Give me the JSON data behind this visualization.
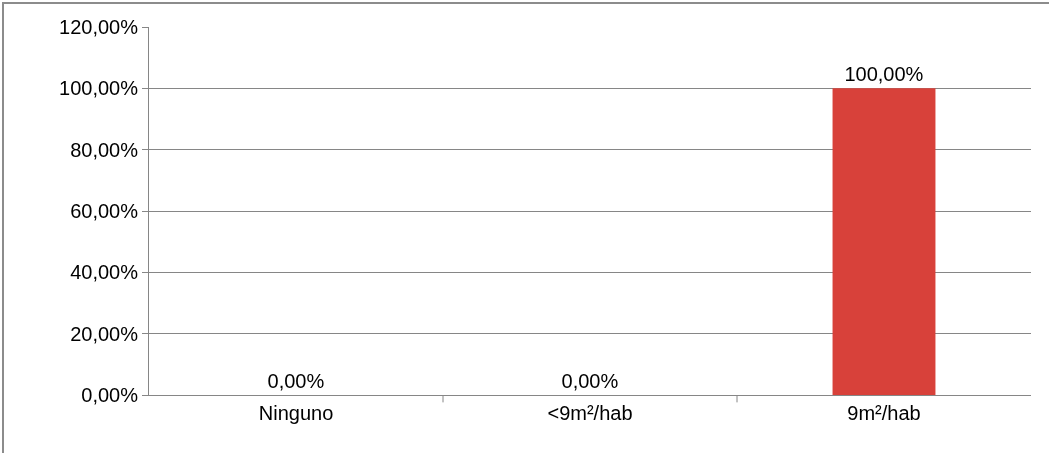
{
  "chart_data": {
    "type": "bar",
    "categories": [
      "Ninguno",
      "<9m²/hab",
      "9m²/hab"
    ],
    "values": [
      0,
      0,
      100
    ],
    "value_labels": [
      "0,00%",
      "0,00%",
      "100,00%"
    ],
    "color": "#d8413a",
    "ylim": [
      0,
      120
    ],
    "yticks": [
      {
        "value": 0,
        "label": "0,00%"
      },
      {
        "value": 20,
        "label": "20,00%"
      },
      {
        "value": 40,
        "label": "40,00%"
      },
      {
        "value": 60,
        "label": "60,00%"
      },
      {
        "value": 80,
        "label": "80,00%"
      },
      {
        "value": 100,
        "label": "100,00%"
      },
      {
        "value": 120,
        "label": "120,00%"
      }
    ],
    "grid": "y",
    "legend": false
  }
}
